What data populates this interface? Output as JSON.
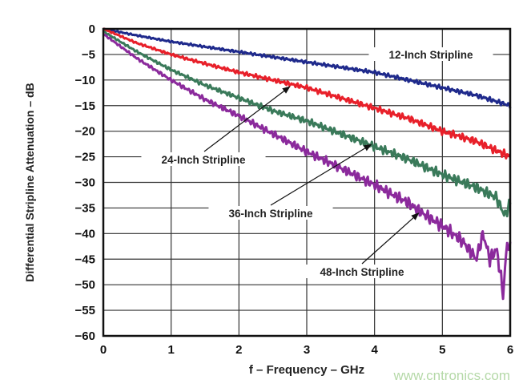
{
  "chart_data": {
    "type": "line",
    "title": "",
    "xlabel": "f – Frequency – GHz",
    "ylabel": "Differential Stripline Attenuation – dB",
    "xlim": [
      0,
      6
    ],
    "ylim": [
      -60,
      0
    ],
    "xticks": [
      "0",
      "1",
      "2",
      "3",
      "4",
      "5",
      "6"
    ],
    "yticks": [
      "0",
      "−5",
      "−10",
      "−15",
      "−20",
      "−25",
      "−30",
      "−35",
      "−40",
      "−45",
      "−50",
      "−55",
      "−60"
    ],
    "grid": true,
    "series": [
      {
        "name": "12-Inch Stripline",
        "color": "#1f2a8c",
        "x": [
          0,
          0.5,
          1,
          1.5,
          2,
          2.5,
          3,
          3.5,
          4,
          4.5,
          5,
          5.5,
          6
        ],
        "y": [
          0,
          -1.3,
          -2.5,
          -3.5,
          -4.5,
          -5.5,
          -6.5,
          -7.5,
          -8.5,
          -10,
          -11.5,
          -13,
          -15
        ]
      },
      {
        "name": "24-Inch Stripline",
        "color": "#e8202a",
        "x": [
          0,
          0.5,
          1,
          1.5,
          2,
          2.5,
          3,
          3.5,
          4,
          4.5,
          5,
          5.5,
          6
        ],
        "y": [
          0,
          -2.8,
          -5,
          -6.8,
          -8.5,
          -10,
          -11.5,
          -13.5,
          -15.5,
          -17.5,
          -20,
          -22,
          -25
        ]
      },
      {
        "name": "36-Inch Stripline",
        "color": "#3a7a5a",
        "x": [
          0,
          0.5,
          1,
          1.5,
          2,
          2.5,
          3,
          3.5,
          4,
          4.5,
          5,
          5.5,
          5.8,
          5.92,
          6
        ],
        "y": [
          -0.5,
          -4.5,
          -8,
          -11,
          -13.5,
          -16,
          -18,
          -20.5,
          -23,
          -25.5,
          -28.5,
          -31,
          -33,
          -36.5,
          -34
        ]
      },
      {
        "name": "48-Inch Stripline",
        "color": "#8b2a9c",
        "x": [
          0,
          0.5,
          1,
          1.5,
          2,
          2.5,
          3,
          3.5,
          4,
          4.5,
          4.7,
          5,
          5.3,
          5.5,
          5.6,
          5.7,
          5.8,
          5.9,
          5.95,
          6
        ],
        "y": [
          -1,
          -5.8,
          -10,
          -13.8,
          -17,
          -20.5,
          -24,
          -27.2,
          -30.5,
          -34,
          -36,
          -38.5,
          -41.5,
          -45,
          -40,
          -45,
          -43,
          -52,
          -42,
          -43
        ]
      }
    ],
    "annotations": [
      {
        "text": "12-Inch Stripline"
      },
      {
        "text": "24-Inch Stripline",
        "points_to": [
          2.75,
          -11.3
        ]
      },
      {
        "text": "36-Inch Stripline",
        "points_to": [
          3.95,
          -22.6
        ]
      },
      {
        "text": "48-Inch Stripline",
        "points_to": [
          4.65,
          -36
        ]
      }
    ],
    "legend": "inline labels"
  },
  "watermark": "www.cntronics.com"
}
